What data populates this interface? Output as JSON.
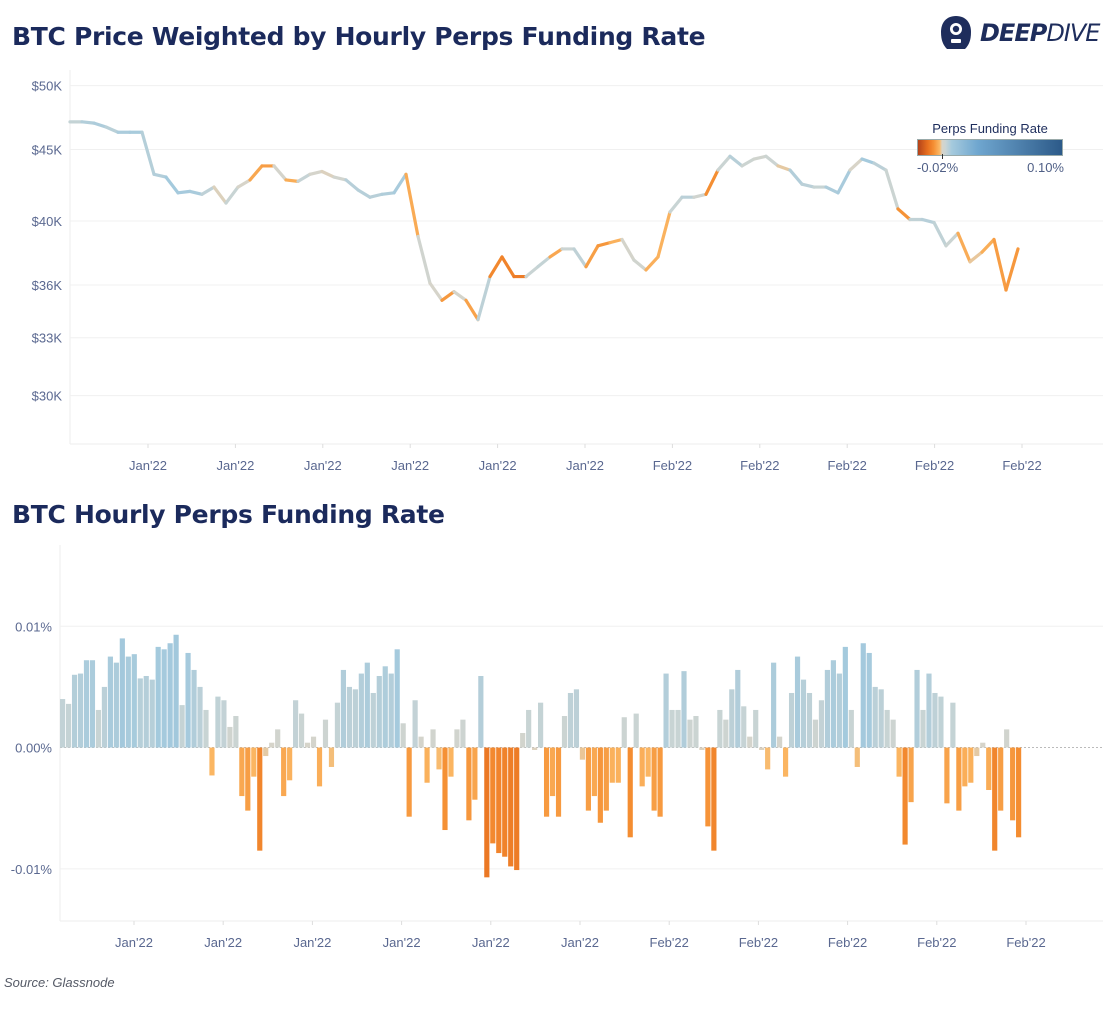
{
  "brand": {
    "logo_bold": "DEEP",
    "logo_light": "DIVE"
  },
  "source": "Source: Glassnode",
  "legend": {
    "title": "Perps Funding Rate",
    "min_label": "-0.02%",
    "max_label": "0.10%",
    "min": -0.02,
    "max": 0.1
  },
  "colors": {
    "title": "#1b2a5c",
    "scale_stops": [
      [
        -0.02,
        "#b3421a"
      ],
      [
        -0.012,
        "#e8701f"
      ],
      [
        -0.007,
        "#f58f33"
      ],
      [
        -0.002,
        "#fbb865"
      ],
      [
        0,
        "#d8d4c8"
      ],
      [
        0.003,
        "#c9d4d4"
      ],
      [
        0.008,
        "#a5cadd"
      ],
      [
        0.03,
        "#6fa6cf"
      ],
      [
        0.1,
        "#2c5a89"
      ]
    ]
  },
  "chart_data": [
    {
      "type": "line",
      "title": "BTC Price Weighted by Hourly Perps Funding Rate",
      "y_scale": "log",
      "ylim": [
        27700,
        51300
      ],
      "y_ticks": [
        {
          "value": 50000,
          "label": "$50K"
        },
        {
          "value": 45000,
          "label": "$45K"
        },
        {
          "value": 40000,
          "label": "$40K"
        },
        {
          "value": 36000,
          "label": "$36K"
        },
        {
          "value": 33000,
          "label": "$33K"
        },
        {
          "value": 30000,
          "label": "$30K"
        }
      ],
      "x_tick_labels": [
        "Jan'22",
        "Jan'22",
        "Jan'22",
        "Jan'22",
        "Jan'22",
        "Jan'22",
        "Feb'22",
        "Feb'22",
        "Feb'22",
        "Feb'22",
        "Feb'22"
      ],
      "grid": true,
      "legend_position": "top-right",
      "color_by": "Perps Funding Rate",
      "values": [
        47100,
        47100,
        47000,
        46700,
        46300,
        46300,
        46300,
        43200,
        43000,
        41900,
        42000,
        41800,
        42300,
        41200,
        42300,
        42800,
        43800,
        43800,
        42800,
        42700,
        43200,
        43400,
        43000,
        42800,
        42100,
        41600,
        41800,
        41900,
        43200,
        39000,
        36100,
        35100,
        35600,
        35100,
        34000,
        36500,
        37700,
        36500,
        36500,
        37100,
        37700,
        38200,
        38200,
        37100,
        38400,
        38600,
        38800,
        37500,
        36900,
        37700,
        40600,
        41600,
        41600,
        41800,
        43500,
        44500,
        43800,
        44300,
        44500,
        43800,
        43500,
        42500,
        42300,
        42300,
        41900,
        43500,
        44300,
        44000,
        43500,
        40800,
        40100,
        40100,
        39900,
        38400,
        39200,
        37400,
        38000,
        38800,
        35700,
        38200
      ]
    },
    {
      "type": "bar",
      "title": "BTC Hourly Perps Funding Rate",
      "unit": "%",
      "ylim": [
        -0.0143,
        0.0167
      ],
      "y_ticks": [
        {
          "value": 0.01,
          "label": "0.01%"
        },
        {
          "value": 0,
          "label": "0.00%"
        },
        {
          "value": -0.01,
          "label": "-0.01%"
        }
      ],
      "x_tick_labels": [
        "Jan'22",
        "Jan'22",
        "Jan'22",
        "Jan'22",
        "Jan'22",
        "Jan'22",
        "Feb'22",
        "Feb'22",
        "Feb'22",
        "Feb'22",
        "Feb'22"
      ],
      "grid": true,
      "values": [
        0.004,
        0.0036,
        0.006,
        0.0061,
        0.0072,
        0.0072,
        0.0031,
        0.005,
        0.0075,
        0.007,
        0.009,
        0.0075,
        0.0077,
        0.0057,
        0.0059,
        0.0056,
        0.0083,
        0.0081,
        0.0086,
        0.0093,
        0.0035,
        0.0078,
        0.0064,
        0.005,
        0.0031,
        -0.0023,
        0.0042,
        0.0039,
        0.0017,
        0.0026,
        -0.004,
        -0.0052,
        -0.0024,
        -0.0085,
        -0.0007,
        0.0004,
        0.0015,
        -0.004,
        -0.0027,
        0.0039,
        0.0028,
        0.0004,
        0.0009,
        -0.0032,
        0.0023,
        -0.0016,
        0.0037,
        0.0064,
        0.005,
        0.0048,
        0.0061,
        0.007,
        0.0045,
        0.0059,
        0.0067,
        0.0061,
        0.0081,
        0.002,
        -0.0057,
        0.0039,
        0.0009,
        -0.0029,
        0.0015,
        -0.0018,
        -0.0068,
        -0.0024,
        0.0015,
        0.0023,
        -0.006,
        -0.0043,
        0.0059,
        -0.0107,
        -0.0079,
        -0.0087,
        -0.009,
        -0.0098,
        -0.0101,
        0.0012,
        0.0031,
        -0.0002,
        0.0037,
        -0.0057,
        -0.004,
        -0.0057,
        0.0026,
        0.0045,
        0.0048,
        -0.001,
        -0.0052,
        -0.004,
        -0.0062,
        -0.0052,
        -0.0029,
        -0.0029,
        0.0025,
        -0.0074,
        0.0028,
        -0.0032,
        -0.0024,
        -0.0052,
        -0.0057,
        0.0061,
        0.0031,
        0.0031,
        0.0063,
        0.0023,
        0.0026,
        -0.0002,
        -0.0065,
        -0.0085,
        0.0031,
        0.0023,
        0.0048,
        0.0064,
        0.0034,
        0.0009,
        0.0031,
        -0.0002,
        -0.0018,
        0.007,
        0.0009,
        -0.0024,
        0.0045,
        0.0075,
        0.0056,
        0.0045,
        0.0023,
        0.0039,
        0.0064,
        0.0072,
        0.0061,
        0.0083,
        0.0031,
        -0.0016,
        0.0086,
        0.0078,
        0.005,
        0.0048,
        0.0031,
        0.0023,
        -0.0024,
        -0.008,
        -0.0045,
        0.0064,
        0.0031,
        0.0061,
        0.0045,
        0.0042,
        -0.0046,
        0.0037,
        -0.0052,
        -0.0032,
        -0.0029,
        -0.0007,
        0.0004,
        -0.0035,
        -0.0085,
        -0.0052,
        0.0015,
        -0.006,
        -0.0074
      ]
    }
  ]
}
